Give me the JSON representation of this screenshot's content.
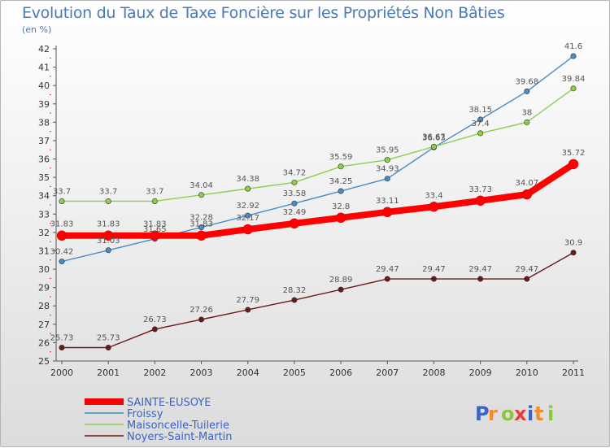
{
  "chart_data": {
    "type": "line",
    "title": "Evolution du Taux de Taxe Foncière sur les Propriétés Non Bâties",
    "subtitle": "(en %)",
    "x": [
      "2000",
      "2001",
      "2002",
      "2003",
      "2004",
      "2005",
      "2006",
      "2007",
      "2008",
      "2009",
      "2010",
      "2011"
    ],
    "y_ticks": [
      25,
      26,
      27,
      28,
      29,
      30,
      31,
      32,
      33,
      34,
      35,
      36,
      37,
      38,
      39,
      40,
      41,
      42
    ],
    "ylim": [
      25,
      42
    ],
    "grid": false,
    "legend_position": "bottom-left",
    "series": [
      {
        "name": "SAINTE-EUSOYE",
        "color": "#ff0000",
        "values": [
          31.83,
          31.83,
          31.83,
          31.83,
          32.17,
          32.49,
          32.8,
          33.11,
          33.4,
          33.73,
          34.07,
          35.72
        ],
        "labels": [
          "31.83",
          "31.83",
          "31.83",
          "31.83",
          "32.17",
          "32.49",
          "32.8",
          "33.11",
          "33.4",
          "33.73",
          "34.07",
          "35.72"
        ]
      },
      {
        "name": "Froissy",
        "color": "#4a8bc6",
        "values": [
          30.42,
          31.03,
          31.65,
          32.28,
          32.92,
          33.58,
          34.25,
          34.93,
          36.63,
          38.15,
          39.68,
          41.6
        ],
        "labels": [
          "30.42",
          "31.03",
          "31.65",
          "32.28",
          "32.92",
          "33.58",
          "34.25",
          "34.93",
          "36.63",
          "38.15",
          "39.68",
          "41.6"
        ]
      },
      {
        "name": "Maisoncelle-Tuilerie",
        "color": "#8cd04a",
        "values": [
          33.7,
          33.7,
          33.7,
          34.04,
          34.38,
          34.72,
          35.59,
          35.95,
          36.67,
          37.4,
          38,
          39.84
        ],
        "labels": [
          "33.7",
          "33.7",
          "33.7",
          "34.04",
          "34.38",
          "34.72",
          "35.59",
          "35.95",
          "36.67",
          "37.4",
          "38",
          "39.84"
        ]
      },
      {
        "name": "Noyers-Saint-Martin",
        "color": "#6b1a1a",
        "values": [
          25.73,
          25.73,
          26.73,
          27.26,
          27.79,
          28.32,
          28.89,
          29.47,
          29.47,
          29.47,
          29.47,
          30.9
        ],
        "labels": [
          "25.73",
          "25.73",
          "26.73",
          "27.26",
          "27.79",
          "28.32",
          "28.89",
          "29.47",
          "29.47",
          "29.47",
          "29.47",
          "30.9"
        ]
      }
    ]
  },
  "logo": {
    "text": "Proxiti"
  }
}
